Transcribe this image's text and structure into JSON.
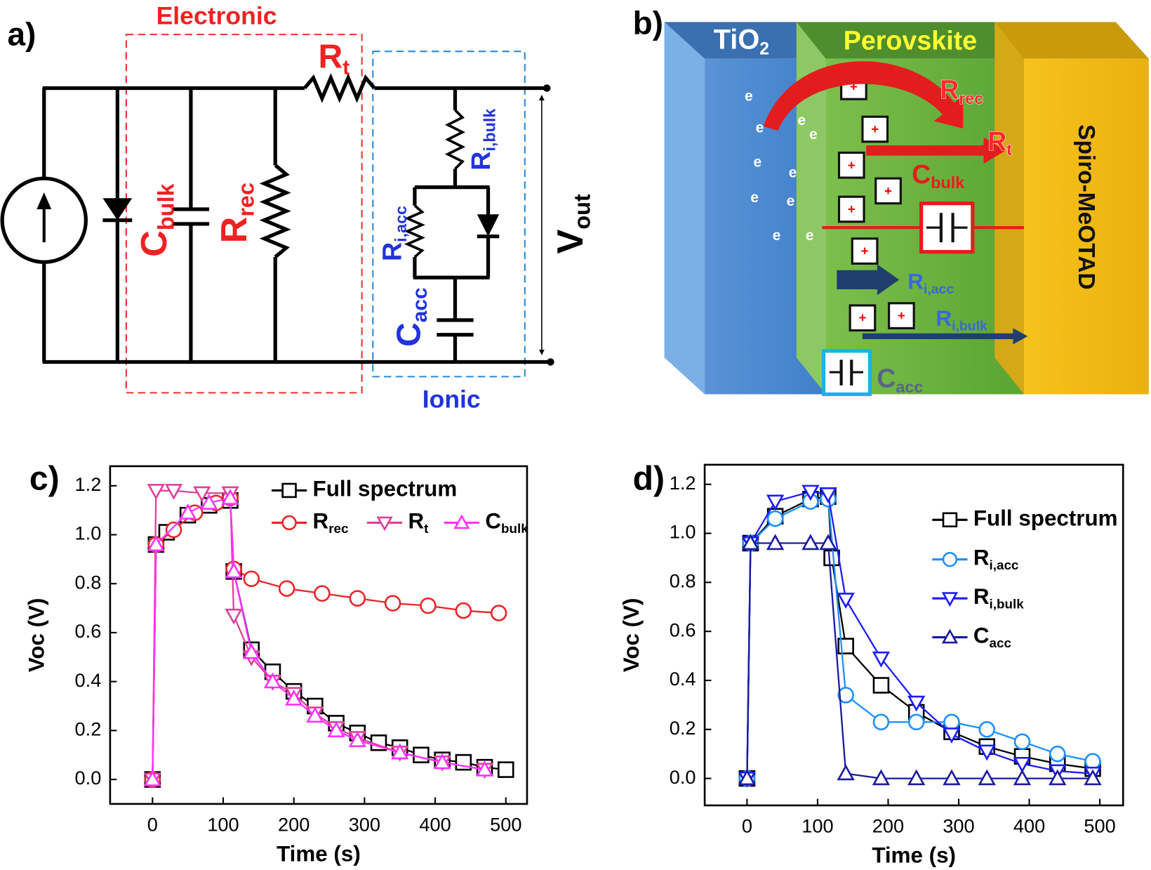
{
  "circuit": {
    "panel_label": "a)",
    "electronic": "Electronic",
    "ionic": "Ionic",
    "labels": [
      {
        "text": "R",
        "sub": "t"
      },
      {
        "text": "C",
        "sub": "bulk"
      },
      {
        "text": "R",
        "sub": "rec"
      },
      {
        "text": "R",
        "sub": "i,bulk"
      },
      {
        "text": "R",
        "sub": "i,acc"
      },
      {
        "text": "C",
        "sub": "acc"
      },
      {
        "text": "V",
        "sub": "out"
      }
    ]
  },
  "device": {
    "panel_label": "b)",
    "layers": [
      {
        "text": "TiO",
        "sub": "2"
      },
      {
        "text": "Perovskite"
      },
      {
        "text": "Spiro-MeOTAD"
      }
    ],
    "labels": [
      {
        "text": "R",
        "sub": "rec"
      },
      {
        "text": "R",
        "sub": "t"
      },
      {
        "text": "C",
        "sub": "bulk"
      },
      {
        "text": "R",
        "sub": "i,acc"
      },
      {
        "text": "R",
        "sub": "i,bulk"
      },
      {
        "text": "C",
        "sub": "acc"
      }
    ],
    "electron": "e",
    "hole": "+"
  },
  "chart_data": [
    {
      "type": "line",
      "panel_label": "c)",
      "x_label": "Time (s)",
      "y_label": "Voc (V)",
      "xlim": [
        -60,
        530
      ],
      "ylim": [
        -0.1,
        1.28
      ],
      "xticks": [
        0,
        100,
        200,
        300,
        400,
        500
      ],
      "yticks": [
        {
          "value": 0,
          "label": "0.0"
        },
        0.2,
        0.4,
        0.6,
        0.8,
        {
          "value": 1,
          "label": "1.0"
        },
        1.2
      ],
      "legend": "upper right",
      "series": [
        {
          "name": "Full spectrum",
          "color": "#000000",
          "marker": "square",
          "x": [
            0,
            5,
            20,
            50,
            80,
            110,
            115,
            140,
            170,
            200,
            230,
            260,
            290,
            320,
            350,
            380,
            410,
            440,
            470,
            500
          ],
          "values": [
            0,
            0.96,
            1.01,
            1.08,
            1.12,
            1.14,
            0.85,
            0.53,
            0.44,
            0.36,
            0.3,
            0.23,
            0.19,
            0.15,
            0.13,
            0.1,
            0.08,
            0.07,
            0.05,
            0.04
          ]
        },
        {
          "name": "R",
          "subscript": "rec",
          "color": "#e8262a",
          "marker": "circle",
          "x": [
            0,
            5,
            30,
            60,
            90,
            110,
            115,
            140,
            190,
            240,
            290,
            340,
            390,
            440,
            490
          ],
          "values": [
            0,
            0.96,
            1.02,
            1.09,
            1.13,
            1.15,
            0.86,
            0.82,
            0.78,
            0.76,
            0.74,
            0.72,
            0.71,
            0.69,
            0.68
          ]
        },
        {
          "name": "R",
          "subscript": "t",
          "color": "#e0409a",
          "marker": "triangle-down",
          "x": [
            0,
            5,
            30,
            70,
            110,
            115,
            140,
            170,
            200,
            230,
            260,
            290,
            350,
            410,
            470
          ],
          "values": [
            0,
            1.18,
            1.18,
            1.17,
            1.17,
            0.67,
            0.5,
            0.4,
            0.35,
            0.27,
            0.21,
            0.17,
            0.11,
            0.07,
            0.04
          ]
        },
        {
          "name": "C",
          "subscript": "bulk",
          "color": "#ff33ff",
          "marker": "triangle-up",
          "x": [
            0,
            5,
            50,
            80,
            110,
            115,
            140,
            170,
            200,
            230,
            260,
            290,
            350,
            410,
            470
          ],
          "values": [
            0,
            0.96,
            1.09,
            1.13,
            1.15,
            0.85,
            0.52,
            0.4,
            0.33,
            0.26,
            0.2,
            0.16,
            0.11,
            0.07,
            0.04
          ]
        }
      ]
    },
    {
      "type": "line",
      "panel_label": "d)",
      "x_label": "Time (s)",
      "y_label": "Voc (V)",
      "xlim": [
        -60,
        533
      ],
      "ylim": [
        -0.11,
        1.28
      ],
      "xticks": [
        0,
        100,
        200,
        300,
        400,
        500
      ],
      "yticks": [
        {
          "value": 0,
          "label": "0.0"
        },
        0.2,
        0.4,
        0.6,
        0.8,
        {
          "value": 1,
          "label": "1.0"
        },
        1.2
      ],
      "legend": "center right",
      "series": [
        {
          "name": "Full spectrum",
          "color": "#000000",
          "marker": "square",
          "x": [
            0,
            5,
            40,
            90,
            115,
            120,
            140,
            190,
            240,
            290,
            340,
            390,
            440,
            490
          ],
          "values": [
            0,
            0.96,
            1.07,
            1.14,
            1.15,
            0.9,
            0.54,
            0.38,
            0.27,
            0.19,
            0.13,
            0.09,
            0.06,
            0.04
          ]
        },
        {
          "name": "R",
          "subscript": "i,acc",
          "color": "#1e90ff",
          "marker": "circle",
          "x": [
            0,
            5,
            40,
            90,
            115,
            140,
            190,
            240,
            290,
            340,
            390,
            440,
            490
          ],
          "values": [
            0,
            0.96,
            1.06,
            1.13,
            1.14,
            0.34,
            0.23,
            0.23,
            0.23,
            0.2,
            0.15,
            0.1,
            0.07
          ]
        },
        {
          "name": "R",
          "subscript": "i,bulk",
          "color": "#1c1cff",
          "marker": "triangle-down",
          "x": [
            0,
            5,
            40,
            90,
            115,
            140,
            190,
            240,
            290,
            340,
            390,
            440,
            490
          ],
          "values": [
            0,
            0.96,
            1.13,
            1.17,
            1.16,
            0.73,
            0.49,
            0.31,
            0.18,
            0.11,
            0.06,
            0.03,
            0.02
          ]
        },
        {
          "name": "C",
          "subscript": "acc",
          "color": "#1a1aa0",
          "marker": "triangle-up",
          "x": [
            0,
            5,
            40,
            90,
            115,
            140,
            190,
            240,
            290,
            340,
            390,
            440,
            490
          ],
          "values": [
            0,
            0.96,
            0.96,
            0.96,
            0.96,
            0.02,
            0,
            0,
            0,
            0,
            0,
            0,
            0
          ]
        }
      ]
    }
  ]
}
